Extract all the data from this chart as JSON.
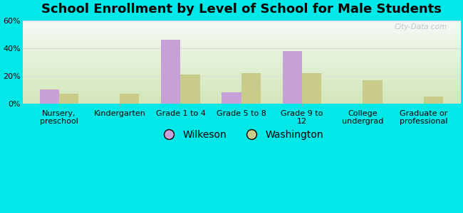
{
  "title": "School Enrollment by Level of School for Male Students",
  "categories": [
    "Nursery,\npreschool",
    "Kindergarten",
    "Grade 1 to 4",
    "Grade 5 to 8",
    "Grade 9 to\n12",
    "College\nundergrad",
    "Graduate or\nprofessional"
  ],
  "wilkeson": [
    10.0,
    0.0,
    46.0,
    8.0,
    38.0,
    0.0,
    0.0
  ],
  "washington": [
    7.0,
    7.0,
    21.0,
    22.0,
    22.0,
    17.0,
    5.0
  ],
  "wilkeson_color": "#c8a0d8",
  "washington_color": "#c8cc88",
  "background_outer": "#00e8e8",
  "background_inner_top": "#f5faf5",
  "background_inner_bottom": "#d8ebb8",
  "ylim": [
    0,
    60
  ],
  "yticks": [
    0,
    20,
    40,
    60
  ],
  "ytick_labels": [
    "0%",
    "20%",
    "40%",
    "60%"
  ],
  "grid_color": "#dddddd",
  "title_fontsize": 13,
  "legend_fontsize": 10,
  "tick_fontsize": 8,
  "bar_width": 0.32,
  "watermark": "City-Data.com"
}
